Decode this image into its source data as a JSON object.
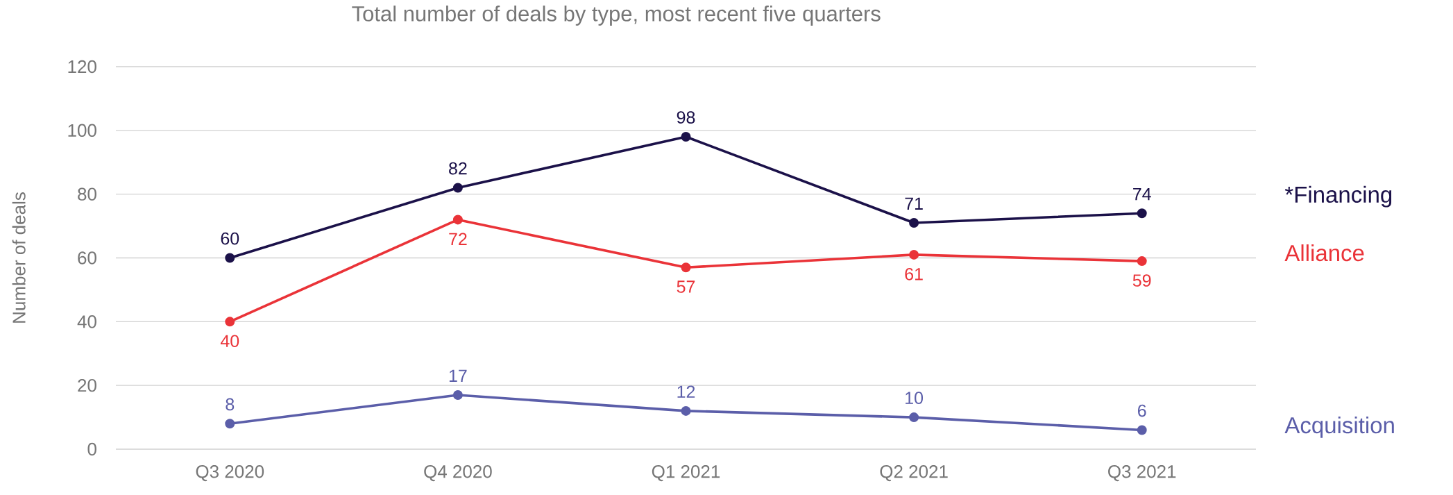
{
  "chart_data": {
    "type": "line",
    "title": "Total number of deals by type, most recent five quarters",
    "ylabel": "Number of deals",
    "categories": [
      "Q3 2020",
      "Q4 2020",
      "Q1 2021",
      "Q2 2021",
      "Q3 2021"
    ],
    "series": [
      {
        "name": "*Financing",
        "color": "#1b1149",
        "values": [
          60,
          82,
          98,
          71,
          74
        ]
      },
      {
        "name": "Alliance",
        "color": "#ea3338",
        "values": [
          40,
          72,
          57,
          61,
          59
        ]
      },
      {
        "name": "Acquisition",
        "color": "#5b5ea9",
        "values": [
          8,
          17,
          12,
          10,
          6
        ]
      }
    ],
    "ylim": [
      0,
      120
    ],
    "yticks": [
      0,
      20,
      40,
      60,
      80,
      100,
      120
    ],
    "grid": "y",
    "marker": "circle",
    "line_style": "solid",
    "data_labels": true
  }
}
